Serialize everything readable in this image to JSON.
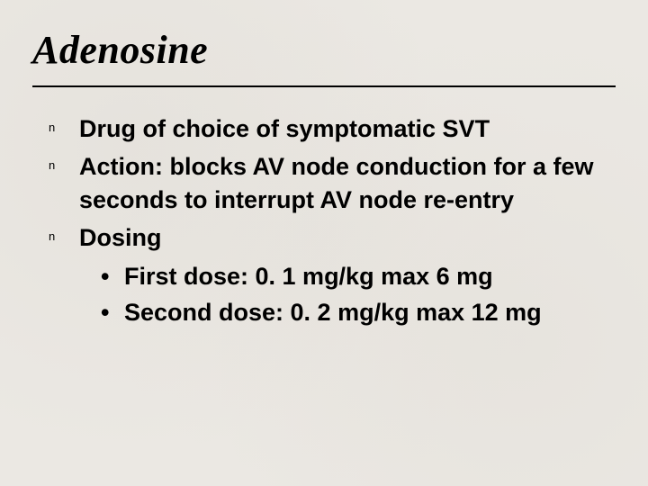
{
  "slide": {
    "title": "Adenosine",
    "title_font": "Times New Roman",
    "title_style": "italic bold",
    "title_size_pt": 44,
    "body_font": "Arial",
    "body_weight": "bold",
    "body_size_pt": 27,
    "background_color": "#ebe8e3",
    "text_color": "#000000",
    "divider_color": "#000000",
    "bullet_glyph": "n",
    "sub_bullet_glyph": "•",
    "items": [
      {
        "text": "Drug of choice of symptomatic SVT"
      },
      {
        "text": "Action: blocks AV node conduction for a few seconds to interrupt AV node re-entry"
      },
      {
        "text": "Dosing",
        "sub": [
          {
            "text": "First dose: 0. 1 mg/kg max 6 mg"
          },
          {
            "text": "Second dose: 0. 2 mg/kg max 12 mg"
          }
        ]
      }
    ]
  }
}
